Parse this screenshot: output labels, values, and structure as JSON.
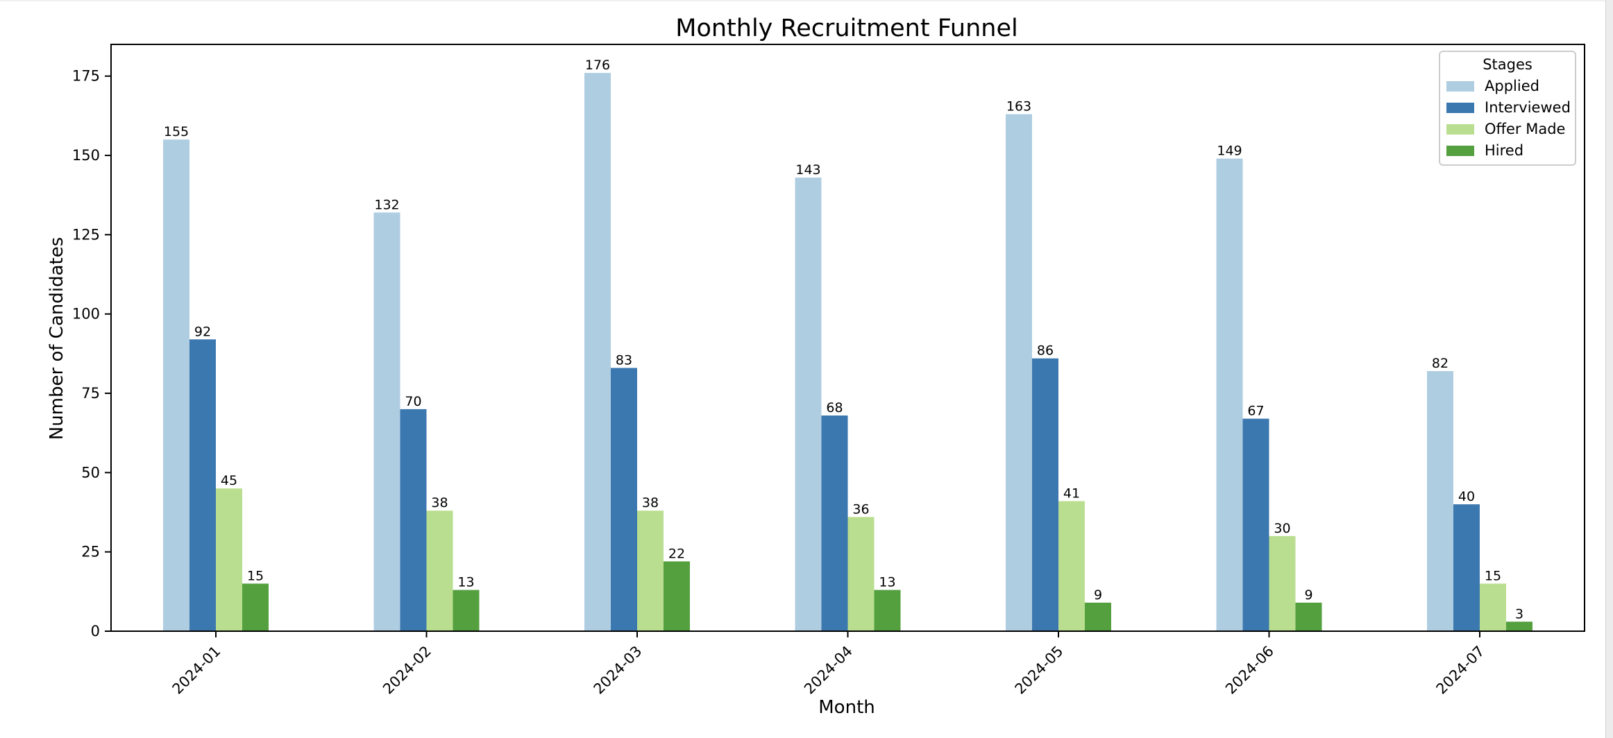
{
  "chart_data": {
    "type": "bar",
    "title": "Monthly Recruitment Funnel",
    "xlabel": "Month",
    "ylabel": "Number of Candidates",
    "categories": [
      "2024-01",
      "2024-02",
      "2024-03",
      "2024-04",
      "2024-05",
      "2024-06",
      "2024-07"
    ],
    "ylim": [
      0,
      185
    ],
    "yticks": [
      0,
      25,
      50,
      75,
      100,
      125,
      150,
      175
    ],
    "grid": false,
    "legend": {
      "title": "Stages",
      "position": "top-right"
    },
    "series": [
      {
        "name": "Applied",
        "color": "#afcde1",
        "values": [
          155,
          132,
          176,
          143,
          163,
          149,
          82
        ]
      },
      {
        "name": "Interviewed",
        "color": "#3c78b0",
        "values": [
          92,
          70,
          83,
          68,
          86,
          67,
          40
        ]
      },
      {
        "name": "Offer Made",
        "color": "#bade8f",
        "values": [
          45,
          38,
          38,
          36,
          41,
          30,
          15
        ]
      },
      {
        "name": "Hired",
        "color": "#54a03f",
        "values": [
          15,
          13,
          22,
          13,
          9,
          9,
          3
        ]
      }
    ]
  }
}
